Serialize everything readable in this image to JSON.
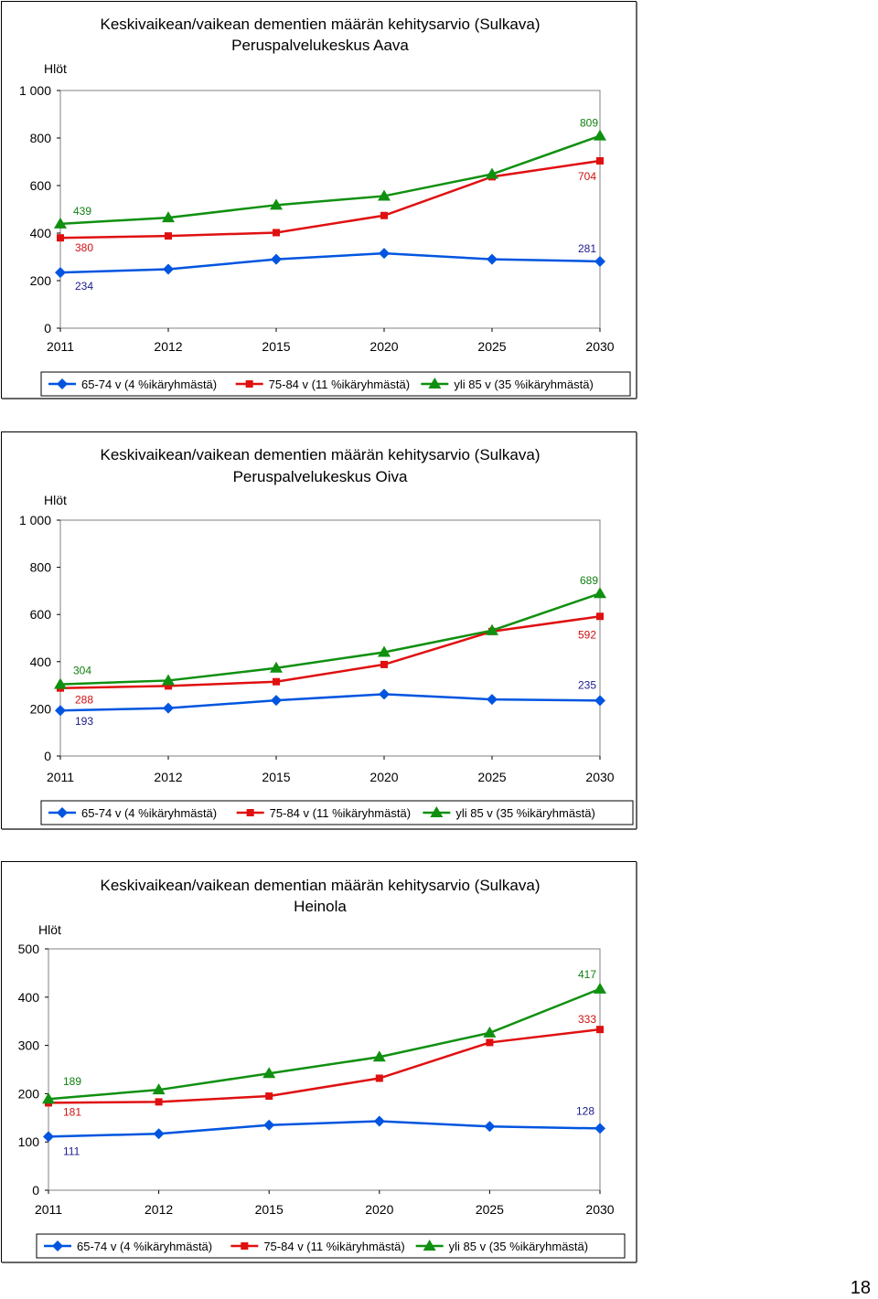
{
  "legend": {
    "s1": "65-74 v (4 %ikäryhmästä)",
    "s2": "75-84 v (11 %ikäryhmästä)",
    "s3": "yli  85 v (35 %ikäryhmästä)"
  },
  "series_colors": [
    "#0055e0",
    "#e01010",
    "#109010"
  ],
  "series_markers": [
    "diamond",
    "square",
    "triangle"
  ],
  "page_number": "18",
  "chart_data": [
    {
      "type": "line",
      "title_lines": [
        "Keskivaikean/vaikean dementien määrän kehitysarvio (Sulkava)",
        "Peruspalvelukeskus Aava"
      ],
      "ylabel": "Hlöt",
      "x": [
        "2011",
        "2012",
        "2015",
        "2020",
        "2025",
        "2030"
      ],
      "y_ticks": [
        "0",
        "200",
        "400",
        "600",
        "800",
        "1 000"
      ],
      "ylim": [
        0,
        1000
      ],
      "grid": false,
      "legend_position": "bottom",
      "series": [
        {
          "name": "65-74 v (4 %ikäryhmästä)",
          "values": [
            234,
            248,
            290,
            315,
            290,
            281
          ]
        },
        {
          "name": "75-84 v (11 %ikäryhmästä)",
          "values": [
            380,
            388,
            402,
            474,
            637,
            704
          ]
        },
        {
          "name": "yli  85 v (35 %ikäryhmästä)",
          "values": [
            439,
            465,
            518,
            556,
            648,
            809
          ]
        }
      ],
      "data_labels": [
        {
          "series": 0,
          "point": 0,
          "text": "234"
        },
        {
          "series": 0,
          "point": 5,
          "text": "281"
        },
        {
          "series": 1,
          "point": 0,
          "text": "380"
        },
        {
          "series": 1,
          "point": 5,
          "text": "704"
        },
        {
          "series": 2,
          "point": 0,
          "text": "439"
        },
        {
          "series": 2,
          "point": 5,
          "text": "809"
        }
      ]
    },
    {
      "type": "line",
      "title_lines": [
        "Keskivaikean/vaikean dementien määrän kehitysarvio (Sulkava)",
        "Peruspalvelukeskus Oiva"
      ],
      "ylabel": "Hlöt",
      "x": [
        "2011",
        "2012",
        "2015",
        "2020",
        "2025",
        "2030"
      ],
      "y_ticks": [
        "0",
        "200",
        "400",
        "600",
        "800",
        "1 000"
      ],
      "ylim": [
        0,
        1000
      ],
      "grid": false,
      "legend_position": "bottom",
      "series": [
        {
          "name": "65-74 v (4 %ikäryhmästä)",
          "values": [
            193,
            203,
            236,
            262,
            240,
            235
          ]
        },
        {
          "name": "75-84 v (11 %ikäryhmästä)",
          "values": [
            288,
            297,
            315,
            388,
            528,
            592
          ]
        },
        {
          "name": "yli  85 v (35 %ikäryhmästä)",
          "values": [
            304,
            320,
            373,
            440,
            532,
            689
          ]
        }
      ],
      "data_labels": [
        {
          "series": 0,
          "point": 0,
          "text": "193"
        },
        {
          "series": 0,
          "point": 5,
          "text": "235"
        },
        {
          "series": 1,
          "point": 0,
          "text": "288"
        },
        {
          "series": 1,
          "point": 5,
          "text": "592"
        },
        {
          "series": 2,
          "point": 0,
          "text": "304"
        },
        {
          "series": 2,
          "point": 5,
          "text": "689"
        }
      ]
    },
    {
      "type": "line",
      "title_lines": [
        "Keskivaikean/vaikean dementian määrän kehitysarvio (Sulkava)",
        "Heinola"
      ],
      "ylabel": "Hlöt",
      "x": [
        "2011",
        "2012",
        "2015",
        "2020",
        "2025",
        "2030"
      ],
      "y_ticks": [
        "0",
        "100",
        "200",
        "300",
        "400",
        "500"
      ],
      "ylim": [
        0,
        500
      ],
      "grid": false,
      "legend_position": "bottom",
      "series": [
        {
          "name": "65-74 v (4 %ikäryhmästä)",
          "values": [
            111,
            117,
            135,
            143,
            132,
            128
          ]
        },
        {
          "name": "75-84 v (11 %ikäryhmästä)",
          "values": [
            181,
            183,
            195,
            232,
            306,
            333
          ]
        },
        {
          "name": "yli  85 v (35 %ikäryhmästä)",
          "values": [
            189,
            208,
            242,
            276,
            326,
            417
          ]
        }
      ],
      "data_labels": [
        {
          "series": 0,
          "point": 0,
          "text": "111"
        },
        {
          "series": 0,
          "point": 5,
          "text": "128"
        },
        {
          "series": 1,
          "point": 0,
          "text": "181"
        },
        {
          "series": 1,
          "point": 5,
          "text": "333"
        },
        {
          "series": 2,
          "point": 0,
          "text": "189"
        },
        {
          "series": 2,
          "point": 5,
          "text": "417"
        }
      ]
    }
  ]
}
